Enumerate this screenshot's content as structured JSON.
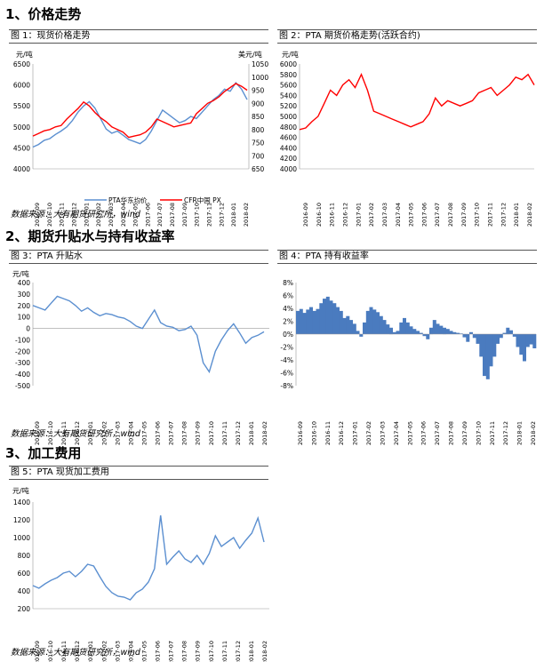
{
  "sections": [
    {
      "title": "1、价格走势"
    },
    {
      "title": "2、期货升贴水与持有收益率"
    },
    {
      "title": "3、加工费用"
    }
  ],
  "source_text": "数据来源：大有期货研究所，wind",
  "date_ticks": [
    "2016-09",
    "2016-10",
    "2016-11",
    "2016-12",
    "2017-01",
    "2017-02",
    "2017-03",
    "2017-04",
    "2017-05",
    "2017-06",
    "2017-07",
    "2017-08",
    "2017-09",
    "2017-10",
    "2017-11",
    "2017-12",
    "2018-01",
    "2018-02"
  ],
  "date_ticks_odd": [
    "2016-09",
    "2016-11",
    "2017-01",
    "2017-03",
    "2017-05",
    "2017-07",
    "2017-09",
    "2017-11",
    "2018-01"
  ],
  "date_ticks_f2": [
    "2016-09",
    "2016-11",
    "2017-02",
    "2017-04",
    "2017-05",
    "2017-07",
    "2017-10",
    "2017-12",
    "2018-01",
    "2018-02"
  ],
  "date_ticks_f4": [
    "2016-09",
    "2016-10",
    "2016-12",
    "2017-01",
    "2017-03",
    "2017-04",
    "2017-05",
    "2017-06",
    "2017-08",
    "2017-09",
    "2017-10",
    "2017-11",
    "2017-12",
    "2018-01",
    "2018-02"
  ],
  "colors": {
    "blue": "#5b8fd0",
    "red": "#ff0000",
    "bar": "#4a7bbf"
  },
  "chart_data": [
    {
      "id": "fig1",
      "type": "line",
      "title": "图 1：现货价格走势",
      "ylabel_left": "元/吨",
      "ylabel_right": "美元/吨",
      "ylim_left": [
        4000,
        6500
      ],
      "ylim_right": [
        650,
        1050
      ],
      "yticks_left": [
        "6500",
        "6000",
        "5500",
        "5000",
        "4500",
        "4000"
      ],
      "yticks_right": [
        "1050",
        "1000",
        "950",
        "900",
        "850",
        "800",
        "750",
        "700",
        "650"
      ],
      "series": [
        {
          "name": "PTA华东均价",
          "axis": "left",
          "color": "blue",
          "values": [
            4520,
            4580,
            4680,
            4720,
            4820,
            4900,
            5000,
            5150,
            5350,
            5500,
            5600,
            5450,
            5200,
            4950,
            4850,
            4900,
            4800,
            4700,
            4650,
            4600,
            4700,
            4900,
            5150,
            5400,
            5300,
            5200,
            5100,
            5150,
            5250,
            5200,
            5350,
            5500,
            5650,
            5750,
            5900,
            5850,
            6050,
            5900,
            5650
          ]
        },
        {
          "name": "CFR中国 PX",
          "axis": "right",
          "color": "red",
          "values": [
            775,
            785,
            795,
            800,
            810,
            815,
            840,
            860,
            880,
            905,
            890,
            865,
            845,
            830,
            810,
            800,
            790,
            770,
            775,
            780,
            790,
            810,
            840,
            830,
            820,
            810,
            815,
            820,
            825,
            860,
            880,
            900,
            910,
            925,
            945,
            960,
            975,
            965,
            950
          ]
        }
      ]
    },
    {
      "id": "fig2",
      "type": "line",
      "title": "图 2：PTA 期货价格走势(活跃合约)",
      "ylabel": "元/吨",
      "ylim": [
        4000,
        6000
      ],
      "yticks": [
        "6000",
        "5800",
        "5600",
        "5400",
        "5200",
        "5000",
        "4800",
        "4600",
        "4400",
        "4200",
        "4000"
      ],
      "series": [
        {
          "name": "",
          "color": "red",
          "values": [
            4750,
            4780,
            4900,
            5000,
            5250,
            5500,
            5400,
            5600,
            5700,
            5550,
            5800,
            5500,
            5100,
            5050,
            5000,
            4950,
            4900,
            4850,
            4800,
            4850,
            4900,
            5050,
            5350,
            5200,
            5300,
            5250,
            5200,
            5250,
            5300,
            5450,
            5500,
            5550,
            5400,
            5500,
            5600,
            5750,
            5700,
            5800,
            5600
          ]
        }
      ]
    },
    {
      "id": "fig3",
      "type": "line",
      "title": "图 3：PTA 升贴水",
      "ylabel": "元/吨",
      "ylim": [
        -500,
        400
      ],
      "yticks": [
        "400",
        "300",
        "200",
        "100",
        "0",
        "-100",
        "-200",
        "-300",
        "-400",
        "-500"
      ],
      "series": [
        {
          "name": "",
          "color": "blue",
          "values": [
            200,
            180,
            160,
            220,
            280,
            260,
            240,
            200,
            150,
            180,
            140,
            110,
            130,
            120,
            100,
            90,
            60,
            20,
            0,
            80,
            160,
            50,
            20,
            10,
            -20,
            -10,
            20,
            -60,
            -300,
            -380,
            -200,
            -100,
            -20,
            40,
            -40,
            -130,
            -80,
            -60,
            -30
          ]
        }
      ]
    },
    {
      "id": "fig4",
      "type": "bar",
      "title": "图 4：PTA 持有收益率",
      "ylabel": "",
      "ylim": [
        -8,
        8
      ],
      "yticks": [
        "8%",
        "6%",
        "4%",
        "2%",
        "0%",
        "-2%",
        "-4%",
        "-6%",
        "-8%"
      ],
      "values": [
        3.6,
        3.9,
        3.3,
        3.8,
        4.2,
        3.6,
        3.9,
        4.8,
        5.5,
        5.8,
        5.2,
        4.8,
        4.2,
        3.6,
        2.5,
        2.8,
        2.2,
        1.6,
        0.5,
        -0.4,
        1.8,
        3.6,
        4.2,
        3.8,
        3.4,
        2.8,
        2.2,
        1.5,
        1.0,
        0.3,
        0.5,
        1.8,
        2.5,
        1.8,
        1.2,
        0.8,
        0.5,
        0.2,
        -0.3,
        -0.8,
        1.0,
        2.2,
        1.6,
        1.3,
        1.0,
        0.8,
        0.5,
        0.3,
        0.2,
        0.1,
        -0.5,
        -1.2,
        0.3,
        -0.6,
        -1.5,
        -3.5,
        -6.5,
        -7.0,
        -5.0,
        -3.5,
        -1.5,
        -0.6,
        0.2,
        1.0,
        0.6,
        -0.4,
        -2.0,
        -3.2,
        -4.2,
        -2.0,
        -1.6,
        -2.2
      ]
    },
    {
      "id": "fig5",
      "type": "line",
      "title": "图 5：PTA 现货加工费用",
      "ylabel": "元/吨",
      "ylim": [
        200,
        1400
      ],
      "yticks": [
        "1400",
        "1200",
        "1000",
        "800",
        "600",
        "400",
        "200"
      ],
      "series": [
        {
          "name": "",
          "color": "blue",
          "values": [
            460,
            430,
            480,
            520,
            550,
            600,
            620,
            560,
            620,
            700,
            680,
            560,
            450,
            380,
            340,
            330,
            300,
            380,
            420,
            500,
            650,
            1250,
            700,
            780,
            850,
            760,
            720,
            800,
            700,
            820,
            1020,
            900,
            950,
            1000,
            880,
            970,
            1050,
            1220,
            950
          ]
        }
      ]
    }
  ]
}
